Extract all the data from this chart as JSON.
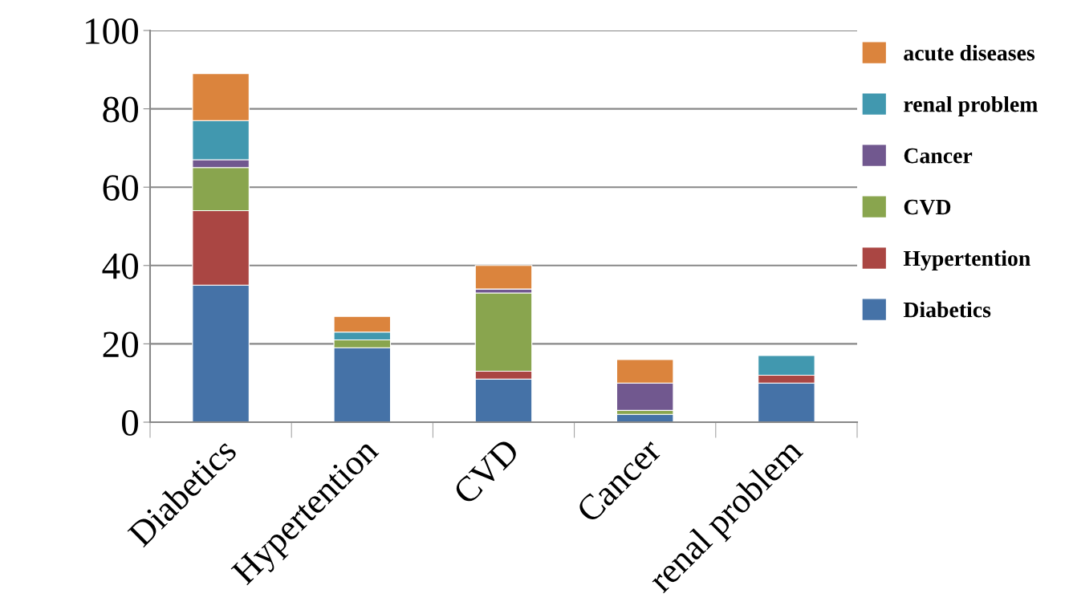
{
  "chart_data": {
    "type": "bar",
    "stacked": true,
    "categories": [
      "Diabetics",
      "Hypertention",
      "CVD",
      "Cancer",
      "renal problem"
    ],
    "series": [
      {
        "name": "Diabetics",
        "color": "#4572a7",
        "values": [
          35,
          19,
          11,
          2,
          10
        ]
      },
      {
        "name": "Hypertention",
        "color": "#aa4643",
        "values": [
          19,
          0,
          2,
          0,
          2
        ]
      },
      {
        "name": "CVD",
        "color": "#89a54e",
        "values": [
          11,
          2,
          20,
          1,
          0
        ]
      },
      {
        "name": "Cancer",
        "color": "#71588f",
        "values": [
          2,
          0,
          1,
          7,
          0
        ]
      },
      {
        "name": "renal problem",
        "color": "#4198af",
        "values": [
          10,
          2,
          0,
          0,
          5
        ]
      },
      {
        "name": "acute diseases",
        "color": "#db843d",
        "values": [
          12,
          4,
          6,
          6,
          0
        ]
      }
    ],
    "ylim": [
      0,
      100
    ],
    "yticks": [
      0,
      20,
      40,
      60,
      80,
      100
    ],
    "grid": "y",
    "legend": "right"
  }
}
